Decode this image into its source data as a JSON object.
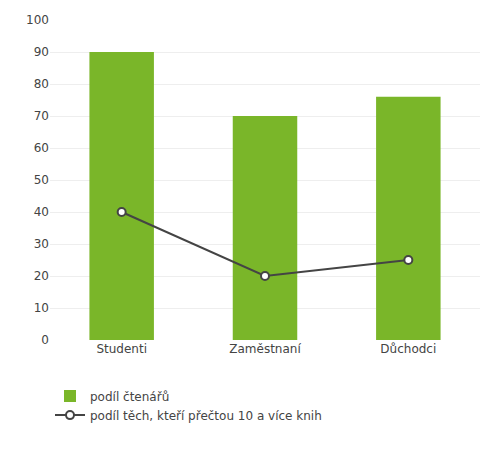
{
  "chart_data": {
    "type": "bar",
    "categories": [
      "Studenti",
      "Zaměstnaní",
      "Důchodci"
    ],
    "series": [
      {
        "name": "podíl čtenářů",
        "type": "bar",
        "color": "#7ab629",
        "values": [
          90,
          70,
          76
        ]
      },
      {
        "name": "podíl těch, kteří přečtou 10 a více knih",
        "type": "line",
        "color": "#444444",
        "marker": "circle",
        "values": [
          40,
          20,
          25
        ]
      }
    ],
    "ylim": [
      0,
      100
    ],
    "yticks": [
      0,
      10,
      20,
      30,
      40,
      50,
      60,
      70,
      80,
      90,
      100
    ],
    "grid": true,
    "legend": "bottom left"
  }
}
